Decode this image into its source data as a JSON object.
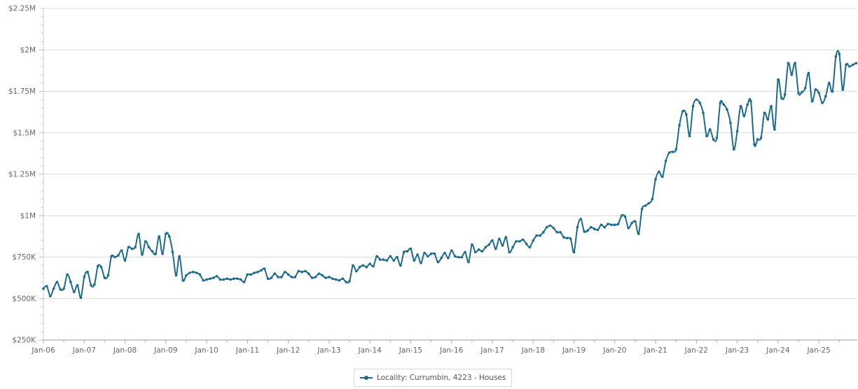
{
  "chart_data": {
    "type": "line",
    "title": "",
    "xlabel": "",
    "ylabel": "",
    "ylim": [
      250000,
      2250000
    ],
    "yticks": [
      {
        "value": 250000,
        "label": "$250K"
      },
      {
        "value": 500000,
        "label": "$500K"
      },
      {
        "value": 750000,
        "label": "$750K"
      },
      {
        "value": 1000000,
        "label": "$1M"
      },
      {
        "value": 1250000,
        "label": "$1.25M"
      },
      {
        "value": 1500000,
        "label": "$1.5M"
      },
      {
        "value": 1750000,
        "label": "$1.75M"
      },
      {
        "value": 2000000,
        "label": "$2M"
      },
      {
        "value": 2250000,
        "label": "$2.25M"
      }
    ],
    "xticks": [
      "Jan-06",
      "Jan-07",
      "Jan-08",
      "Jan-09",
      "Jan-10",
      "Jan-11",
      "Jan-12",
      "Jan-13",
      "Jan-14",
      "Jan-15",
      "Jan-16",
      "Jan-17",
      "Jan-18",
      "Jan-19",
      "Jan-20",
      "Jan-21",
      "Jan-22",
      "Jan-23",
      "Jan-24",
      "Jan-25"
    ],
    "x_start": "2006-01",
    "x_end": "2025-12",
    "grid": true,
    "legend_position": "bottom-center",
    "series": [
      {
        "name": "Locality: Currumbin, 4223 - Houses",
        "color": "#1c6b8c",
        "points": [
          [
            "2006-01",
            560000
          ],
          [
            "2006-02",
            575000
          ],
          [
            "2006-03",
            515000
          ],
          [
            "2006-04",
            560000
          ],
          [
            "2006-05",
            600000
          ],
          [
            "2006-06",
            555000
          ],
          [
            "2006-07",
            560000
          ],
          [
            "2006-08",
            645000
          ],
          [
            "2006-09",
            600000
          ],
          [
            "2006-10",
            540000
          ],
          [
            "2006-11",
            580000
          ],
          [
            "2006-12",
            505000
          ],
          [
            "2007-01",
            630000
          ],
          [
            "2007-02",
            660000
          ],
          [
            "2007-03",
            580000
          ],
          [
            "2007-04",
            585000
          ],
          [
            "2007-05",
            695000
          ],
          [
            "2007-06",
            690000
          ],
          [
            "2007-07",
            625000
          ],
          [
            "2007-08",
            640000
          ],
          [
            "2007-09",
            755000
          ],
          [
            "2007-10",
            750000
          ],
          [
            "2007-11",
            760000
          ],
          [
            "2007-12",
            790000
          ],
          [
            "2008-01",
            730000
          ],
          [
            "2008-02",
            810000
          ],
          [
            "2008-03",
            800000
          ],
          [
            "2008-04",
            810000
          ],
          [
            "2008-05",
            890000
          ],
          [
            "2008-06",
            765000
          ],
          [
            "2008-07",
            845000
          ],
          [
            "2008-08",
            810000
          ],
          [
            "2008-09",
            785000
          ],
          [
            "2008-10",
            770000
          ],
          [
            "2008-11",
            875000
          ],
          [
            "2008-12",
            770000
          ],
          [
            "2009-01",
            890000
          ],
          [
            "2009-02",
            875000
          ],
          [
            "2009-03",
            780000
          ],
          [
            "2009-04",
            640000
          ],
          [
            "2009-05",
            755000
          ],
          [
            "2009-06",
            610000
          ],
          [
            "2009-07",
            640000
          ],
          [
            "2009-08",
            655000
          ],
          [
            "2009-09",
            660000
          ],
          [
            "2009-10",
            655000
          ],
          [
            "2009-11",
            645000
          ],
          [
            "2009-12",
            610000
          ],
          [
            "2010-01",
            615000
          ],
          [
            "2010-02",
            620000
          ],
          [
            "2010-03",
            625000
          ],
          [
            "2010-04",
            635000
          ],
          [
            "2010-05",
            615000
          ],
          [
            "2010-06",
            615000
          ],
          [
            "2010-07",
            620000
          ],
          [
            "2010-08",
            615000
          ],
          [
            "2010-09",
            620000
          ],
          [
            "2010-10",
            620000
          ],
          [
            "2010-11",
            615000
          ],
          [
            "2010-12",
            600000
          ],
          [
            "2011-01",
            645000
          ],
          [
            "2011-02",
            645000
          ],
          [
            "2011-03",
            655000
          ],
          [
            "2011-04",
            660000
          ],
          [
            "2011-05",
            670000
          ],
          [
            "2011-06",
            680000
          ],
          [
            "2011-07",
            620000
          ],
          [
            "2011-08",
            625000
          ],
          [
            "2011-09",
            650000
          ],
          [
            "2011-10",
            630000
          ],
          [
            "2011-11",
            630000
          ],
          [
            "2011-12",
            660000
          ],
          [
            "2012-01",
            645000
          ],
          [
            "2012-02",
            630000
          ],
          [
            "2012-03",
            630000
          ],
          [
            "2012-04",
            665000
          ],
          [
            "2012-05",
            660000
          ],
          [
            "2012-06",
            665000
          ],
          [
            "2012-07",
            650000
          ],
          [
            "2012-08",
            625000
          ],
          [
            "2012-09",
            630000
          ],
          [
            "2012-10",
            650000
          ],
          [
            "2012-11",
            640000
          ],
          [
            "2012-12",
            625000
          ],
          [
            "2013-01",
            630000
          ],
          [
            "2013-02",
            620000
          ],
          [
            "2013-03",
            615000
          ],
          [
            "2013-04",
            610000
          ],
          [
            "2013-05",
            620000
          ],
          [
            "2013-06",
            600000
          ],
          [
            "2013-07",
            605000
          ],
          [
            "2013-08",
            700000
          ],
          [
            "2013-09",
            665000
          ],
          [
            "2013-10",
            690000
          ],
          [
            "2013-11",
            700000
          ],
          [
            "2013-12",
            690000
          ],
          [
            "2014-01",
            710000
          ],
          [
            "2014-02",
            695000
          ],
          [
            "2014-03",
            755000
          ],
          [
            "2014-04",
            735000
          ],
          [
            "2014-05",
            735000
          ],
          [
            "2014-06",
            730000
          ],
          [
            "2014-07",
            755000
          ],
          [
            "2014-08",
            730000
          ],
          [
            "2014-09",
            750000
          ],
          [
            "2014-10",
            700000
          ],
          [
            "2014-11",
            780000
          ],
          [
            "2014-12",
            785000
          ],
          [
            "2015-01",
            800000
          ],
          [
            "2015-02",
            730000
          ],
          [
            "2015-03",
            765000
          ],
          [
            "2015-04",
            715000
          ],
          [
            "2015-05",
            775000
          ],
          [
            "2015-06",
            755000
          ],
          [
            "2015-07",
            770000
          ],
          [
            "2015-08",
            770000
          ],
          [
            "2015-09",
            720000
          ],
          [
            "2015-10",
            745000
          ],
          [
            "2015-11",
            775000
          ],
          [
            "2015-12",
            745000
          ],
          [
            "2016-01",
            790000
          ],
          [
            "2016-02",
            755000
          ],
          [
            "2016-03",
            750000
          ],
          [
            "2016-04",
            750000
          ],
          [
            "2016-05",
            780000
          ],
          [
            "2016-06",
            720000
          ],
          [
            "2016-07",
            825000
          ],
          [
            "2016-08",
            780000
          ],
          [
            "2016-09",
            795000
          ],
          [
            "2016-10",
            785000
          ],
          [
            "2016-11",
            810000
          ],
          [
            "2016-12",
            825000
          ],
          [
            "2017-01",
            850000
          ],
          [
            "2017-02",
            800000
          ],
          [
            "2017-03",
            860000
          ],
          [
            "2017-04",
            820000
          ],
          [
            "2017-05",
            870000
          ],
          [
            "2017-06",
            780000
          ],
          [
            "2017-07",
            810000
          ],
          [
            "2017-08",
            845000
          ],
          [
            "2017-09",
            845000
          ],
          [
            "2017-10",
            855000
          ],
          [
            "2017-11",
            830000
          ],
          [
            "2017-12",
            810000
          ],
          [
            "2018-01",
            850000
          ],
          [
            "2018-02",
            880000
          ],
          [
            "2018-03",
            880000
          ],
          [
            "2018-04",
            900000
          ],
          [
            "2018-05",
            930000
          ],
          [
            "2018-06",
            940000
          ],
          [
            "2018-07",
            925000
          ],
          [
            "2018-08",
            900000
          ],
          [
            "2018-09",
            900000
          ],
          [
            "2018-10",
            870000
          ],
          [
            "2018-11",
            865000
          ],
          [
            "2018-12",
            860000
          ],
          [
            "2019-01",
            780000
          ],
          [
            "2019-02",
            930000
          ],
          [
            "2019-03",
            980000
          ],
          [
            "2019-04",
            905000
          ],
          [
            "2019-05",
            910000
          ],
          [
            "2019-06",
            930000
          ],
          [
            "2019-07",
            920000
          ],
          [
            "2019-08",
            915000
          ],
          [
            "2019-09",
            945000
          ],
          [
            "2019-10",
            930000
          ],
          [
            "2019-11",
            950000
          ],
          [
            "2019-12",
            945000
          ],
          [
            "2020-01",
            945000
          ],
          [
            "2020-02",
            950000
          ],
          [
            "2020-03",
            1000000
          ],
          [
            "2020-04",
            995000
          ],
          [
            "2020-05",
            925000
          ],
          [
            "2020-06",
            955000
          ],
          [
            "2020-07",
            965000
          ],
          [
            "2020-08",
            890000
          ],
          [
            "2020-09",
            1040000
          ],
          [
            "2020-10",
            1060000
          ],
          [
            "2020-11",
            1075000
          ],
          [
            "2020-12",
            1100000
          ],
          [
            "2021-01",
            1220000
          ],
          [
            "2021-02",
            1265000
          ],
          [
            "2021-03",
            1235000
          ],
          [
            "2021-04",
            1330000
          ],
          [
            "2021-05",
            1380000
          ],
          [
            "2021-06",
            1385000
          ],
          [
            "2021-07",
            1400000
          ],
          [
            "2021-08",
            1545000
          ],
          [
            "2021-09",
            1630000
          ],
          [
            "2021-10",
            1610000
          ],
          [
            "2021-11",
            1480000
          ],
          [
            "2021-12",
            1660000
          ],
          [
            "2022-01",
            1700000
          ],
          [
            "2022-02",
            1680000
          ],
          [
            "2022-03",
            1620000
          ],
          [
            "2022-04",
            1480000
          ],
          [
            "2022-05",
            1520000
          ],
          [
            "2022-06",
            1460000
          ],
          [
            "2022-07",
            1470000
          ],
          [
            "2022-08",
            1680000
          ],
          [
            "2022-09",
            1670000
          ],
          [
            "2022-10",
            1640000
          ],
          [
            "2022-11",
            1560000
          ],
          [
            "2022-12",
            1400000
          ],
          [
            "2023-01",
            1510000
          ],
          [
            "2023-02",
            1660000
          ],
          [
            "2023-03",
            1600000
          ],
          [
            "2023-04",
            1670000
          ],
          [
            "2023-05",
            1690000
          ],
          [
            "2023-06",
            1430000
          ],
          [
            "2023-07",
            1460000
          ],
          [
            "2023-08",
            1470000
          ],
          [
            "2023-09",
            1620000
          ],
          [
            "2023-10",
            1580000
          ],
          [
            "2023-11",
            1660000
          ],
          [
            "2023-12",
            1520000
          ],
          [
            "2024-01",
            1820000
          ],
          [
            "2024-02",
            1710000
          ],
          [
            "2024-03",
            1730000
          ],
          [
            "2024-04",
            1920000
          ],
          [
            "2024-05",
            1850000
          ],
          [
            "2024-06",
            1920000
          ],
          [
            "2024-07",
            1740000
          ],
          [
            "2024-08",
            1745000
          ],
          [
            "2024-09",
            1770000
          ],
          [
            "2024-10",
            1860000
          ],
          [
            "2024-11",
            1690000
          ],
          [
            "2024-12",
            1760000
          ],
          [
            "2025-01",
            1740000
          ],
          [
            "2025-02",
            1680000
          ],
          [
            "2025-03",
            1720000
          ],
          [
            "2025-04",
            1800000
          ],
          [
            "2025-05",
            1750000
          ],
          [
            "2025-06",
            1960000
          ],
          [
            "2025-07",
            1975000
          ],
          [
            "2025-08",
            1760000
          ],
          [
            "2025-09",
            1910000
          ],
          [
            "2025-10",
            1900000
          ],
          [
            "2025-11",
            1910000
          ],
          [
            "2025-12",
            1920000
          ]
        ]
      }
    ]
  }
}
